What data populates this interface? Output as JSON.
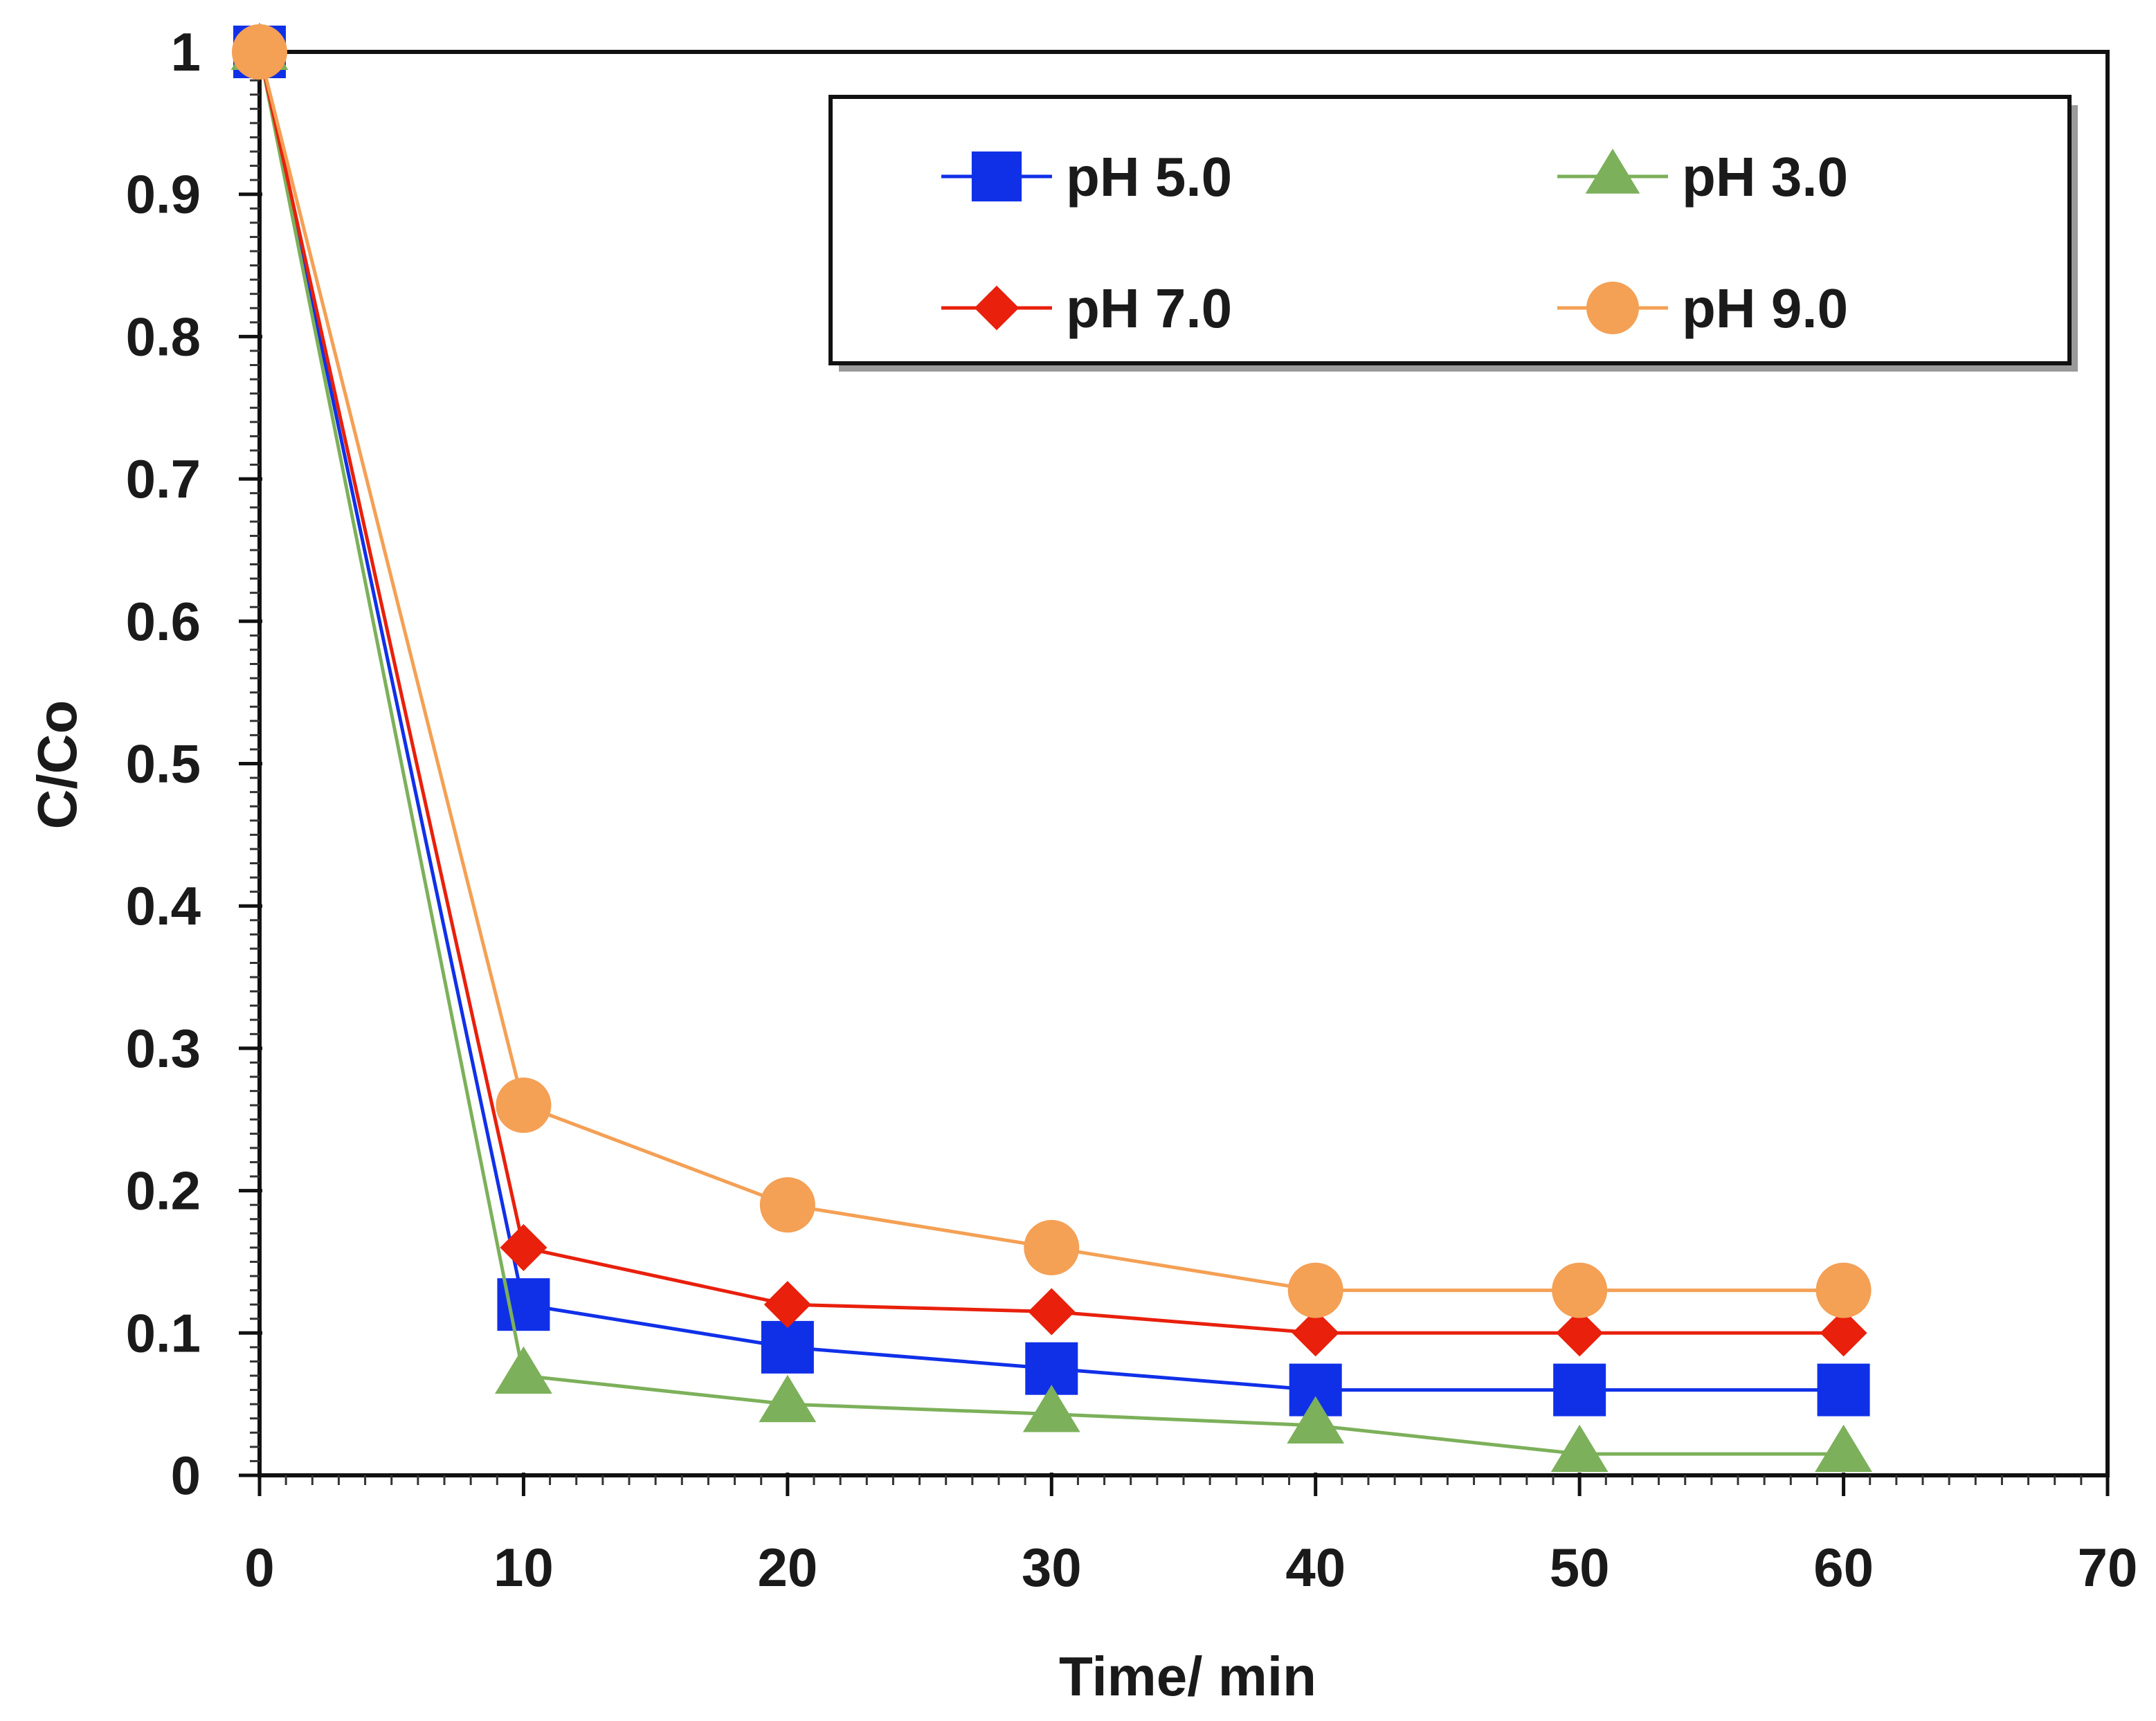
{
  "chart_data": {
    "type": "line",
    "title": "",
    "xlabel": "Time/ min",
    "ylabel": "C/Co",
    "xlim": [
      0,
      70
    ],
    "ylim": [
      0,
      1
    ],
    "x_ticks": [
      0,
      10,
      20,
      30,
      40,
      50,
      60,
      70
    ],
    "y_ticks": [
      0,
      0.1,
      0.2,
      0.3,
      0.4,
      0.5,
      0.6,
      0.7,
      0.8,
      0.9,
      1
    ],
    "grid": false,
    "legend_position": "top-right",
    "series": [
      {
        "name": "pH 5.0",
        "marker": "square",
        "color": "#1030e8",
        "x": [
          0,
          10,
          20,
          30,
          40,
          50,
          60
        ],
        "y": [
          1.0,
          0.12,
          0.09,
          0.075,
          0.06,
          0.06,
          0.06
        ]
      },
      {
        "name": "pH 3.0",
        "marker": "triangle",
        "color": "#7cb05a",
        "x": [
          0,
          10,
          20,
          30,
          40,
          50,
          60
        ],
        "y": [
          1.0,
          0.07,
          0.05,
          0.043,
          0.035,
          0.015,
          0.015
        ]
      },
      {
        "name": "pH 7.0",
        "marker": "diamond",
        "color": "#e8200c",
        "x": [
          0,
          10,
          20,
          30,
          40,
          50,
          60
        ],
        "y": [
          1.0,
          0.16,
          0.12,
          0.115,
          0.1,
          0.1,
          0.1
        ]
      },
      {
        "name": "pH 9.0",
        "marker": "circle",
        "color": "#f4a055",
        "x": [
          0,
          10,
          20,
          30,
          40,
          50,
          60
        ],
        "y": [
          1.0,
          0.26,
          0.19,
          0.16,
          0.13,
          0.13,
          0.13
        ]
      }
    ]
  }
}
